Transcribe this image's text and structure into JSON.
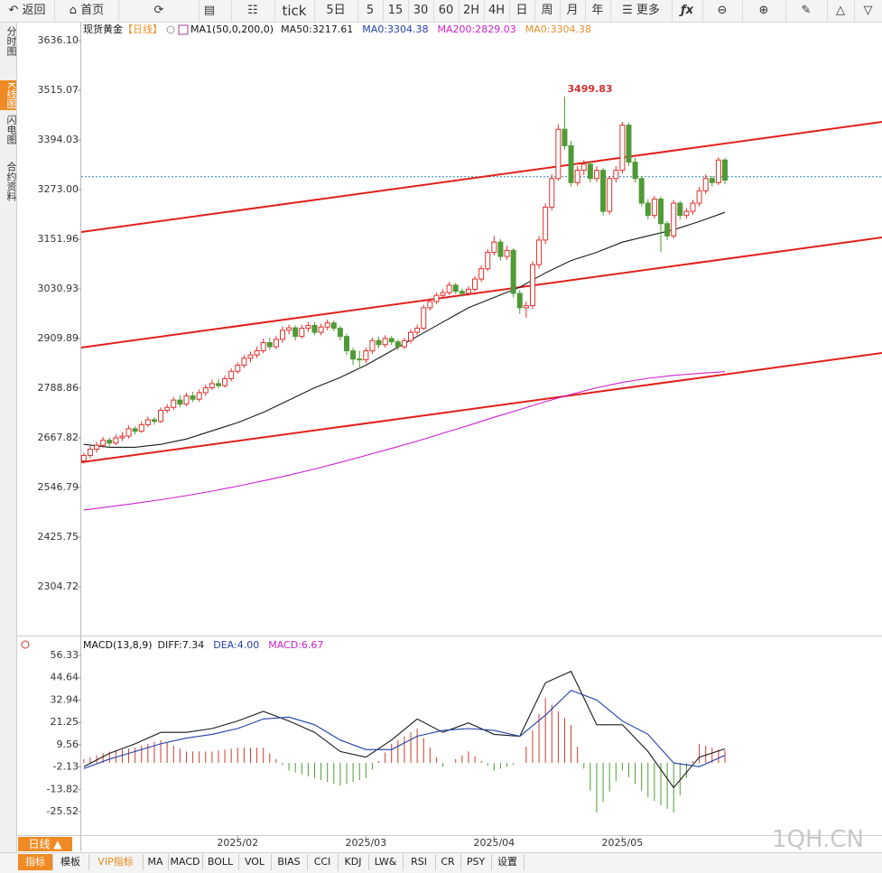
{
  "toolbar": [
    "返回",
    "首页",
    "tick",
    "5日",
    "5",
    "15",
    "30",
    "60",
    "2H",
    "4H",
    "日",
    "周",
    "月",
    "年",
    "更多"
  ],
  "sidebar": [
    "分时图",
    "K线图",
    "闪电图",
    "合约资料"
  ],
  "period_button": "日线",
  "tabs": [
    "指标",
    "模板",
    "VIP指标",
    "MA",
    "MACD",
    "BOLL",
    "VOL",
    "BIAS",
    "CCI",
    "KDJ",
    "LW&",
    "RSI",
    "CR",
    "PSY",
    "设置"
  ],
  "watermark": "1QH.CN",
  "chart_data": [
    {
      "type": "candlestick",
      "title": "现货黄金",
      "period": "【日线】",
      "indicator": "MA1(50,0,200,0)",
      "legend": [
        {
          "name": "MA50:3217.61",
          "color": "#1a1a1a"
        },
        {
          "name": "MA0:3304.38",
          "color": "#1f3fa8"
        },
        {
          "name": "MA200:2829.03",
          "color": "#cc22cc"
        },
        {
          "name": "MA0:3304.38",
          "color": "#e8902a"
        }
      ],
      "xlim": [
        -0.4,
        124.5
      ],
      "ylim": [
        2194.7,
        3669.1
      ],
      "yticks": [
        {
          "value": 3636.1,
          "label": "3636.10"
        },
        3515.07,
        3394.03,
        {
          "value": 3273,
          "label": "3273.00"
        },
        3151.96,
        3030.93,
        2909.89,
        2788.86,
        2667.82,
        2546.79,
        2425.75,
        2304.72
      ],
      "up_color": "#e0302c",
      "down_color": "#4f9a36",
      "candles": [
        [
          2612,
          2632,
          2605,
          2625
        ],
        [
          2625,
          2648,
          2618,
          2640
        ],
        [
          2640,
          2658,
          2632,
          2650
        ],
        [
          2650,
          2670,
          2644,
          2662
        ],
        [
          2662,
          2668,
          2645,
          2655
        ],
        [
          2655,
          2676,
          2650,
          2668
        ],
        [
          2668,
          2682,
          2660,
          2672
        ],
        [
          2672,
          2698,
          2666,
          2690
        ],
        [
          2690,
          2696,
          2676,
          2684
        ],
        [
          2684,
          2708,
          2680,
          2700
        ],
        [
          2700,
          2720,
          2694,
          2712
        ],
        [
          2712,
          2718,
          2700,
          2708
        ],
        [
          2708,
          2742,
          2704,
          2735
        ],
        [
          2735,
          2750,
          2728,
          2742
        ],
        [
          2742,
          2768,
          2736,
          2760
        ],
        [
          2760,
          2772,
          2742,
          2750
        ],
        [
          2750,
          2778,
          2745,
          2770
        ],
        [
          2770,
          2780,
          2755,
          2762
        ],
        [
          2762,
          2786,
          2756,
          2778
        ],
        [
          2778,
          2798,
          2770,
          2790
        ],
        [
          2790,
          2810,
          2784,
          2800
        ],
        [
          2800,
          2812,
          2788,
          2795
        ],
        [
          2795,
          2820,
          2790,
          2812
        ],
        [
          2812,
          2838,
          2806,
          2830
        ],
        [
          2830,
          2852,
          2824,
          2845
        ],
        [
          2845,
          2870,
          2838,
          2862
        ],
        [
          2862,
          2878,
          2852,
          2870
        ],
        [
          2870,
          2890,
          2862,
          2880
        ],
        [
          2880,
          2910,
          2874,
          2900
        ],
        [
          2900,
          2912,
          2882,
          2890
        ],
        [
          2890,
          2916,
          2884,
          2908
        ],
        [
          2908,
          2940,
          2900,
          2930
        ],
        [
          2930,
          2944,
          2920,
          2936
        ],
        [
          2936,
          2942,
          2905,
          2915
        ],
        [
          2915,
          2944,
          2910,
          2935
        ],
        [
          2935,
          2950,
          2926,
          2942
        ],
        [
          2942,
          2950,
          2918,
          2925
        ],
        [
          2925,
          2946,
          2918,
          2938
        ],
        [
          2938,
          2956,
          2930,
          2948
        ],
        [
          2948,
          2954,
          2928,
          2935
        ],
        [
          2935,
          2940,
          2905,
          2915
        ],
        [
          2915,
          2922,
          2870,
          2880
        ],
        [
          2880,
          2888,
          2845,
          2860
        ],
        [
          2860,
          2880,
          2836,
          2858
        ],
        [
          2858,
          2888,
          2850,
          2880
        ],
        [
          2880,
          2912,
          2872,
          2905
        ],
        [
          2905,
          2914,
          2886,
          2895
        ],
        [
          2895,
          2918,
          2888,
          2910
        ],
        [
          2910,
          2916,
          2894,
          2902
        ],
        [
          2902,
          2908,
          2882,
          2890
        ],
        [
          2890,
          2912,
          2884,
          2905
        ],
        [
          2905,
          2932,
          2898,
          2925
        ],
        [
          2925,
          2944,
          2918,
          2935
        ],
        [
          2935,
          2992,
          2930,
          2985
        ],
        [
          2985,
          3008,
          2978,
          3000
        ],
        [
          3000,
          3022,
          2994,
          3015
        ],
        [
          3015,
          3030,
          3008,
          3022
        ],
        [
          3022,
          3048,
          3016,
          3040
        ],
        [
          3040,
          3046,
          3018,
          3025
        ],
        [
          3025,
          3032,
          3012,
          3020
        ],
        [
          3020,
          3038,
          3014,
          3030
        ],
        [
          3030,
          3062,
          3024,
          3055
        ],
        [
          3055,
          3088,
          3048,
          3080
        ],
        [
          3080,
          3128,
          3074,
          3120
        ],
        [
          3120,
          3160,
          3112,
          3145
        ],
        [
          3145,
          3152,
          3100,
          3110
        ],
        [
          3110,
          3136,
          3102,
          3125
        ],
        [
          3125,
          3130,
          3010,
          3020
        ],
        [
          3020,
          3028,
          2970,
          2985
        ],
        [
          2985,
          3000,
          2960,
          2990
        ],
        [
          2990,
          3098,
          2982,
          3090
        ],
        [
          3090,
          3160,
          3080,
          3150
        ],
        [
          3150,
          3240,
          3140,
          3230
        ],
        [
          3230,
          3310,
          3222,
          3300
        ],
        [
          3300,
          3432,
          3294,
          3420
        ],
        [
          3420,
          3499.83,
          3370,
          3380
        ],
        [
          3380,
          3392,
          3280,
          3290
        ],
        [
          3290,
          3330,
          3282,
          3320
        ],
        [
          3320,
          3345,
          3308,
          3335
        ],
        [
          3335,
          3342,
          3290,
          3300
        ],
        [
          3300,
          3330,
          3292,
          3320
        ],
        [
          3320,
          3326,
          3210,
          3220
        ],
        [
          3220,
          3306,
          3212,
          3300
        ],
        [
          3300,
          3330,
          3290,
          3320
        ],
        [
          3320,
          3438,
          3312,
          3430
        ],
        [
          3430,
          3436,
          3330,
          3340
        ],
        [
          3340,
          3350,
          3290,
          3300
        ],
        [
          3300,
          3306,
          3232,
          3240
        ],
        [
          3240,
          3250,
          3200,
          3210
        ],
        [
          3210,
          3258,
          3202,
          3250
        ],
        [
          3250,
          3256,
          3120,
          3190
        ],
        [
          3190,
          3196,
          3150,
          3160
        ],
        [
          3160,
          3248,
          3154,
          3240
        ],
        [
          3240,
          3246,
          3200,
          3210
        ],
        [
          3210,
          3228,
          3202,
          3220
        ],
        [
          3220,
          3248,
          3212,
          3240
        ],
        [
          3240,
          3280,
          3232,
          3270
        ],
        [
          3270,
          3310,
          3262,
          3300
        ],
        [
          3300,
          3306,
          3280,
          3290
        ],
        [
          3290,
          3352,
          3284,
          3345
        ],
        [
          3345,
          3350,
          3286,
          3296
        ]
      ],
      "annotation_candle": 75,
      "line_x": [
        0,
        4,
        8,
        12,
        16,
        20,
        24,
        28,
        32,
        36,
        40,
        44,
        48,
        52,
        56,
        60,
        64,
        68,
        72,
        76,
        80,
        84,
        88,
        92,
        96,
        100
      ],
      "lines": [
        {
          "color": "#1a1a1a",
          "values": [
            2652,
            2645,
            2645,
            2652,
            2665,
            2685,
            2705,
            2730,
            2760,
            2790,
            2815,
            2845,
            2880,
            2915,
            2950,
            2985,
            3010,
            3035,
            3070,
            3100,
            3120,
            3145,
            3160,
            3175,
            3195,
            3217.61
          ]
        },
        {
          "color": "#cc22cc",
          "values": [
            2492,
            2500,
            2508,
            2517,
            2527,
            2538,
            2550,
            2563,
            2577,
            2592,
            2608,
            2625,
            2642,
            2660,
            2679,
            2698,
            2718,
            2737,
            2756,
            2774,
            2790,
            2803,
            2813,
            2820,
            2825,
            2829.03
          ]
        }
      ],
      "channel_color": "#e0201c",
      "channels": [
        {
          "x": [
            -0.4,
            124.5
          ],
          "values": [
            3169.6,
            3438.0
          ]
        },
        {
          "x": [
            -0.4,
            124.5
          ],
          "values": [
            2887.9,
            3156.4
          ]
        },
        {
          "x": [
            -0.4,
            124.5
          ],
          "values": [
            2608.4,
            2874.7
          ]
        }
      ],
      "last_price": 3304.38,
      "last_price_color": "#2a8aa8"
    },
    {
      "type": "macd",
      "title": "MACD(13,8,9)",
      "legend": [
        {
          "name": "DIFF:7.34",
          "color": "#1a1a1a"
        },
        {
          "name": "DEA:4.00",
          "color": "#1f3fa8"
        },
        {
          "name": "MACD:6.67",
          "color": "#cc22cc"
        }
      ],
      "xlim": [
        -0.4,
        124.5
      ],
      "ylim": [
        -42.56,
        62.96
      ],
      "yticks": [
        56.33,
        44.64,
        32.94,
        21.25,
        9.56,
        -2.13,
        -13.82,
        -25.52
      ],
      "xticks": [
        {
          "value": 24,
          "label": "2025/02"
        },
        {
          "value": 44,
          "label": "2025/03"
        },
        {
          "value": 64,
          "label": "2025/04"
        },
        {
          "value": 84,
          "label": "2025/05"
        }
      ],
      "line_x": [
        0,
        4,
        8,
        12,
        16,
        20,
        24,
        28,
        32,
        36,
        40,
        44,
        48,
        52,
        56,
        60,
        64,
        68,
        72,
        76,
        80,
        84,
        88,
        92,
        96,
        100
      ],
      "lines": [
        {
          "color": "#1a1a1a",
          "values": [
            -2,
            5,
            10,
            16,
            16,
            18,
            22,
            27,
            22,
            16,
            6,
            3,
            12,
            23,
            16,
            21,
            15,
            14,
            42,
            48,
            20,
            20,
            6,
            -13,
            3,
            7.34
          ]
        },
        {
          "color": "#1f3fa8",
          "values": [
            -3,
            2,
            6,
            10,
            13,
            15,
            18,
            23,
            24,
            20,
            12,
            7,
            7,
            14,
            17,
            18,
            17,
            14,
            25,
            38,
            33,
            22,
            15,
            0,
            -2,
            4.0
          ]
        }
      ],
      "up_color": "#d03a30",
      "down_color": "#4f9a36",
      "histogram": [
        2,
        3,
        4,
        5,
        6,
        6.5,
        7,
        7.5,
        8,
        9,
        10,
        11,
        12,
        10.5,
        9,
        7.5,
        6,
        6,
        6,
        6,
        6,
        6.5,
        7,
        7.5,
        8,
        8,
        8,
        8,
        8,
        5,
        2,
        -1,
        -4,
        -5,
        -6,
        -7,
        -8,
        -9,
        -10,
        -11,
        -12,
        -11,
        -10,
        -9,
        -8,
        -3.5,
        1,
        5.5,
        10,
        12,
        14,
        16,
        18,
        13,
        8,
        3,
        -2,
        0,
        2,
        4,
        6,
        3.5,
        1,
        -1.5,
        -4,
        -3,
        -2,
        -1,
        0,
        8.5,
        17,
        25.5,
        34,
        30.5,
        27,
        23.5,
        20,
        8.5,
        -3,
        -14.5,
        -26,
        -20.5,
        -15,
        -9.5,
        -4,
        -7.5,
        -11,
        -14.5,
        -18,
        -20,
        -22,
        -24,
        -26,
        -17,
        -8,
        1,
        10,
        9,
        8,
        7,
        6.67
      ]
    }
  ]
}
